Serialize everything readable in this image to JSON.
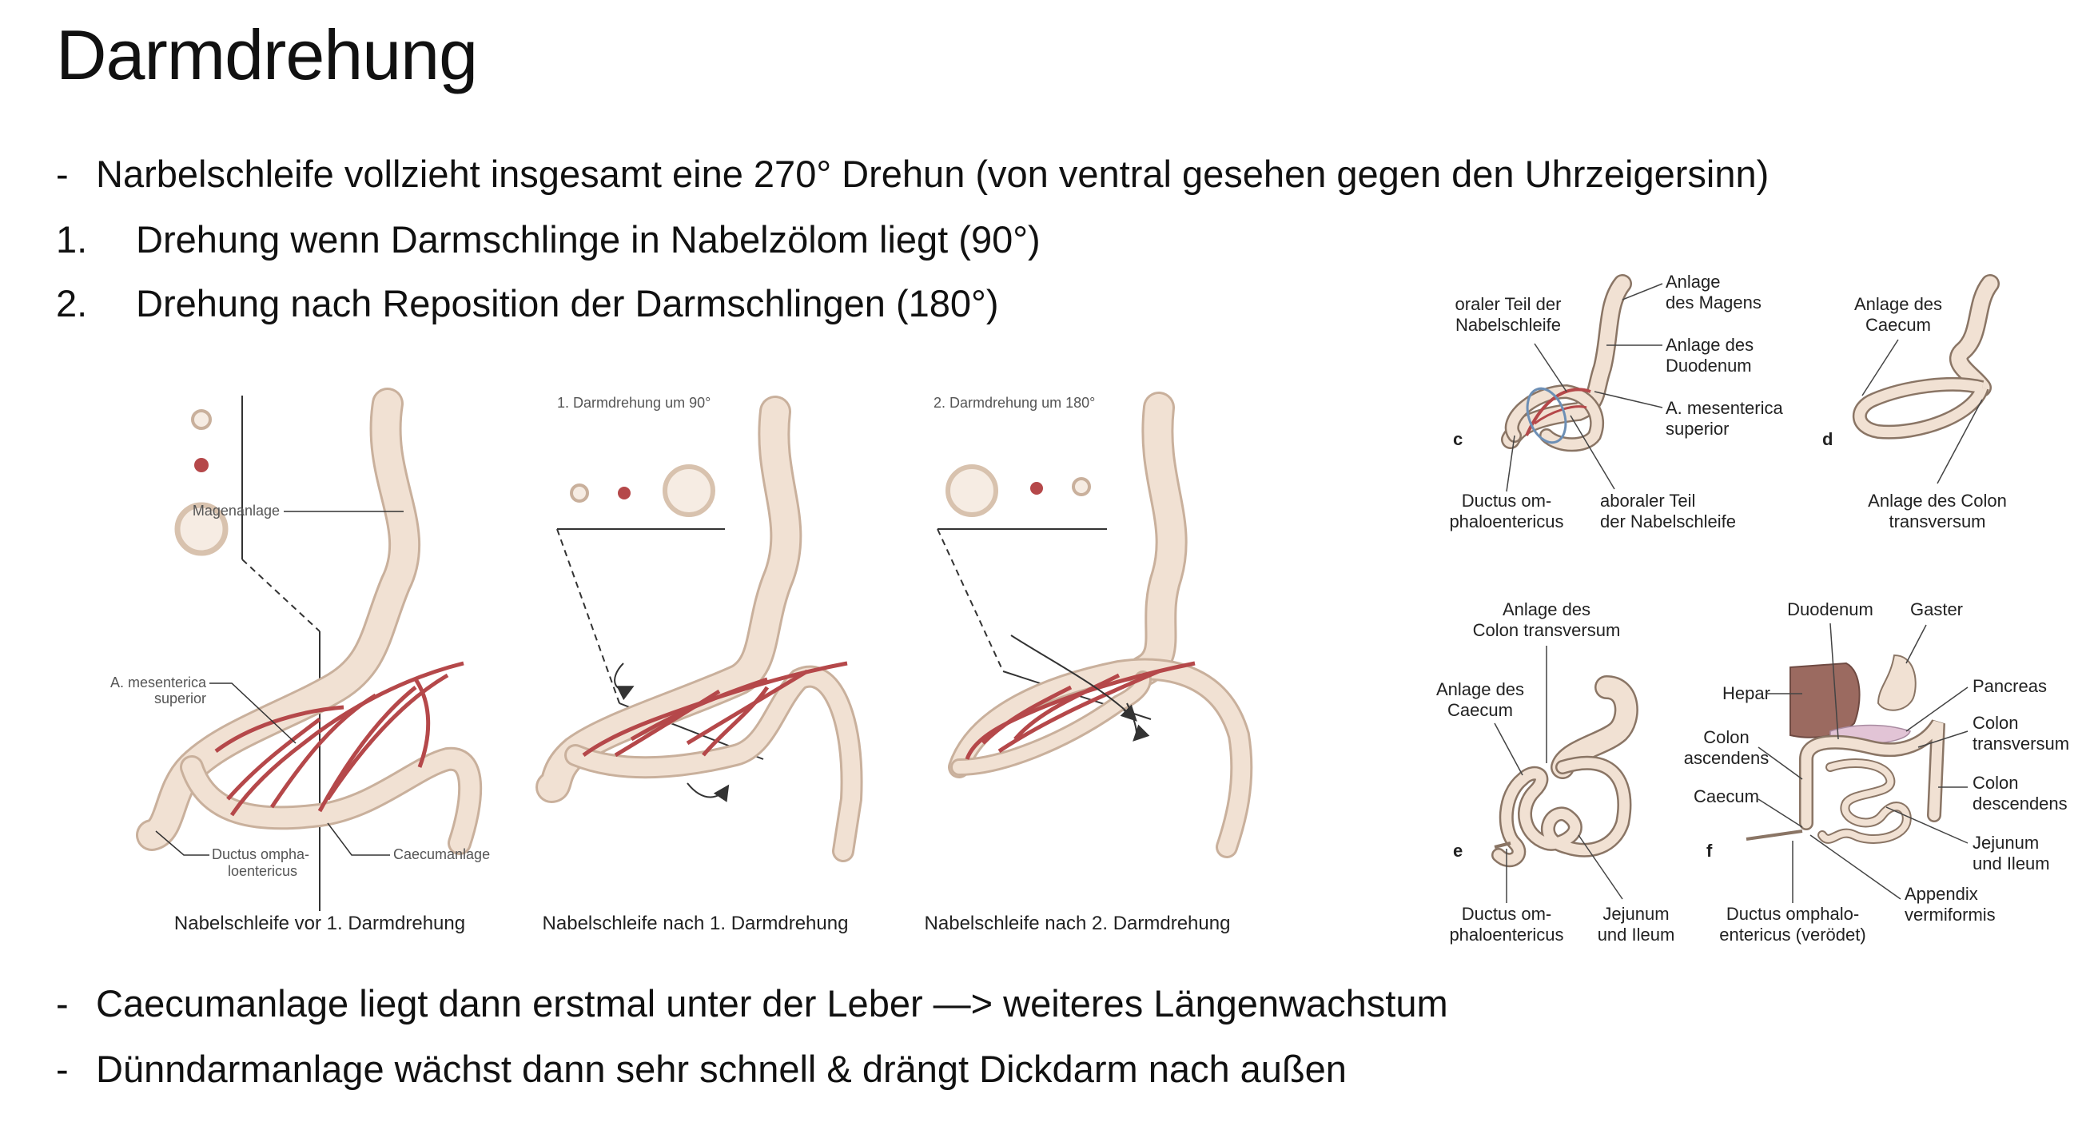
{
  "title": "Darmdrehung",
  "bullets_top": [
    {
      "marker": "-",
      "text": "Narbelschleife vollzieht insgesamt eine 270° Drehun (von ventral gesehen gegen den Uhrzeigersinn)"
    },
    {
      "marker": "1.",
      "text": "Drehung wenn Darmschlinge in Nabelzölom liegt (90°)"
    },
    {
      "marker": "2.",
      "text": "Drehung nach Reposition der Darmschlingen (180°)"
    }
  ],
  "bullets_bottom": [
    {
      "marker": "-",
      "text": "Caecumanlage liegt dann erstmal unter der Leber —> weiteres Längenwachstum"
    },
    {
      "marker": "-",
      "text": "Dünndarmanlage wächst dann sehr schnell & drängt Dickdarm nach außen"
    }
  ],
  "figure_left": {
    "panel1": {
      "caption": "Nabelschleife vor 1. Darmdrehung",
      "labels": {
        "magen": "Magenanlage",
        "mes1": "A. mesenterica",
        "mes2": "superior",
        "duct1": "Ductus ompha-",
        "duct2": "loentericus",
        "caecum": "Caecumanlage"
      }
    },
    "panel2": {
      "heading": "1. Darmdrehung um 90°",
      "caption": "Nabelschleife nach 1. Darmdrehung"
    },
    "panel3": {
      "heading": "2. Darmdrehung um 180°",
      "caption": "Nabelschleife nach 2. Darmdrehung"
    }
  },
  "figure_right": {
    "c": {
      "letter": "c",
      "oral1": "oraler Teil der",
      "oral2": "Nabelschleife",
      "magen1": "Anlage",
      "magen2": "des Magens",
      "duod1": "Anlage des",
      "duod2": "Duodenum",
      "mes1": "A. mesenterica",
      "mes2": "superior",
      "duct1": "Ductus om-",
      "duct2": "phaloentericus",
      "abor1": "aboraler Teil",
      "abor2": "der Nabelschleife"
    },
    "d": {
      "letter": "d",
      "caec1": "Anlage des",
      "caec2": "Caecum",
      "colon1": "Anlage des Colon",
      "colon2": "transversum"
    },
    "e": {
      "letter": "e",
      "colon1": "Anlage des",
      "colon2": "Colon transversum",
      "caec1": "Anlage des",
      "caec2": "Caecum",
      "duct1": "Ductus om-",
      "duct2": "phaloentericus",
      "jej1": "Jejunum",
      "jej2": "und Ileum"
    },
    "f": {
      "letter": "f",
      "duodenum": "Duodenum",
      "gaster": "Gaster",
      "hepar": "Hepar",
      "pancreas": "Pancreas",
      "colasc1": "Colon",
      "colasc2": "ascendens",
      "coltr1": "Colon",
      "coltr2": "transversum",
      "coldesc1": "Colon",
      "coldesc2": "descendens",
      "caecum": "Caecum",
      "jej1": "Jejunum",
      "jej2": "und Ileum",
      "app1": "Appendix",
      "app2": "vermiformis",
      "duct1": "Ductus omphalo-",
      "duct2": "entericus (verödet)"
    }
  },
  "colors": {
    "intestine": "#f1e1d3",
    "intestine_stroke": "#c9b09c",
    "vessel": "#b5484a",
    "liver": "#9b6a60",
    "pancreas": "#e2c4d6"
  }
}
